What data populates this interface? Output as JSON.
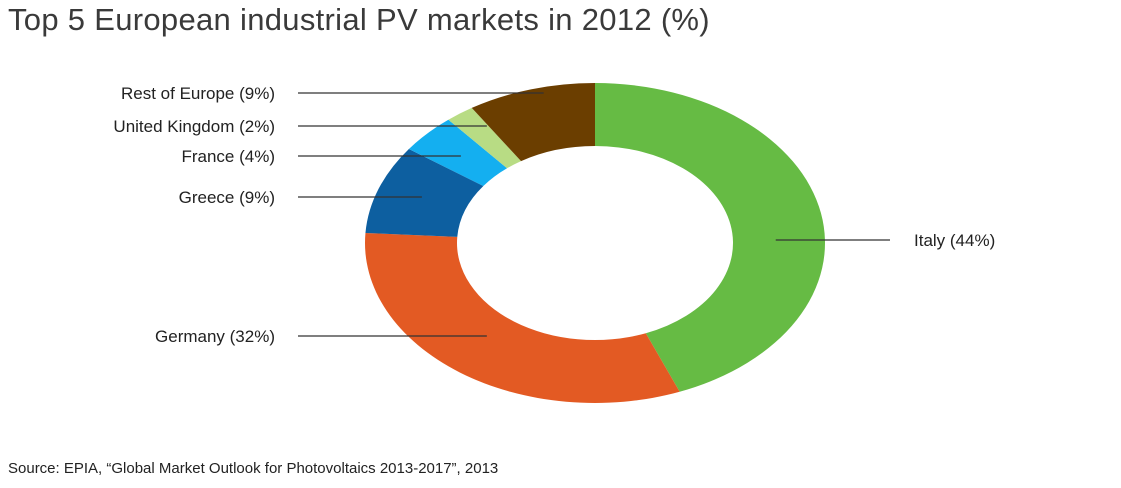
{
  "title": "Top 5 European industrial PV markets in 2012 (%)",
  "source": "Source: EPIA, “Global Market Outlook for Photovoltaics 2013-2017”, 2013",
  "chart_data": {
    "type": "pie",
    "style": "donut",
    "title": "Top 5 European industrial PV markets in 2012 (%)",
    "unit": "%",
    "slices": [
      {
        "label": "Italy (44%)",
        "value": 44,
        "color": "#66bb44"
      },
      {
        "label": "Germany (32%)",
        "value": 32,
        "color": "#e35a23"
      },
      {
        "label": "Greece (9%)",
        "value": 9,
        "color": "#0d5fa0"
      },
      {
        "label": "France (4%)",
        "value": 4,
        "color": "#14aff0"
      },
      {
        "label": "United Kingdom (2%)",
        "value": 2,
        "color": "#b8dc84"
      },
      {
        "label": "Rest of Europe (9%)",
        "value": 9,
        "color": "#6b3e00"
      }
    ]
  }
}
